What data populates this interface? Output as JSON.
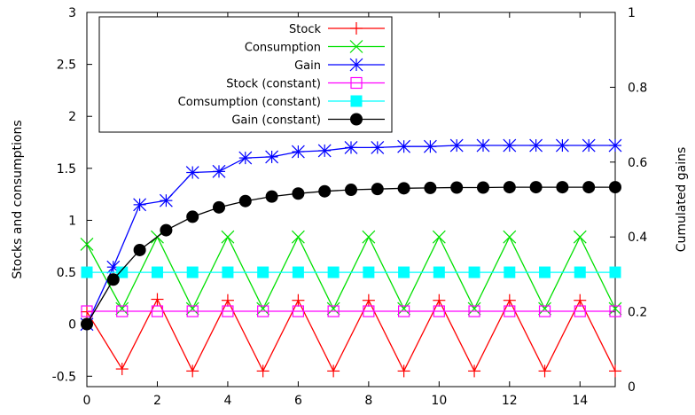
{
  "chart_data": {
    "type": "line",
    "title": "",
    "xlabel": "",
    "ylabel": "Stocks and consumptions",
    "y2label": "Cumulated gains",
    "xlim": [
      0,
      15
    ],
    "ylim": [
      -0.6,
      3
    ],
    "y2lim": [
      0,
      1
    ],
    "x_ticks": [
      0,
      2,
      4,
      6,
      8,
      10,
      12,
      14
    ],
    "y_ticks": [
      -0.5,
      0,
      0.5,
      1,
      1.5,
      2,
      2.5,
      3
    ],
    "y2_ticks": [
      0,
      0.2,
      0.4,
      0.6,
      0.8,
      1
    ],
    "x_tick_labels": [
      "0",
      "2",
      "4",
      "6",
      "8",
      "10",
      "12",
      "14"
    ],
    "y_tick_labels": [
      "-0.5",
      "0",
      "0.5",
      "1",
      "1.5",
      "2",
      "2.5",
      "3"
    ],
    "y2_tick_labels": [
      "0",
      "0.2",
      "0.4",
      "0.6",
      "0.8",
      "1"
    ],
    "grid": false,
    "legend_position": "top-left",
    "series": [
      {
        "name": "Stock",
        "color": "#ff0000",
        "marker": "plus",
        "axis": "y",
        "x": [
          0,
          1,
          2,
          3,
          4,
          5,
          6,
          7,
          8,
          9,
          10,
          11,
          12,
          13,
          14,
          15
        ],
        "y": [
          0.12,
          -0.43,
          0.24,
          -0.45,
          0.23,
          -0.45,
          0.23,
          -0.45,
          0.23,
          -0.45,
          0.23,
          -0.45,
          0.23,
          -0.45,
          0.23,
          -0.45
        ]
      },
      {
        "name": "Consumption",
        "color": "#00e000",
        "marker": "cross",
        "axis": "y",
        "x": [
          0,
          1,
          2,
          3,
          4,
          5,
          6,
          7,
          8,
          9,
          10,
          11,
          12,
          13,
          14,
          15
        ],
        "y": [
          0.77,
          0.15,
          0.84,
          0.15,
          0.84,
          0.15,
          0.84,
          0.15,
          0.84,
          0.15,
          0.84,
          0.15,
          0.84,
          0.15,
          0.84,
          0.15
        ]
      },
      {
        "name": "Gain",
        "color": "#0000ff",
        "marker": "star",
        "axis": "y",
        "x": [
          0,
          0.75,
          1.5,
          2.25,
          3,
          3.75,
          4.5,
          5.25,
          6,
          6.75,
          7.5,
          8.25,
          9,
          9.75,
          10.5,
          11.25,
          12,
          12.75,
          13.5,
          14.25,
          15
        ],
        "y": [
          0,
          0.55,
          1.15,
          1.19,
          1.46,
          1.47,
          1.6,
          1.61,
          1.66,
          1.67,
          1.7,
          1.7,
          1.71,
          1.71,
          1.72,
          1.72,
          1.72,
          1.72,
          1.72,
          1.72,
          1.72
        ]
      },
      {
        "name": "Stock (constant)",
        "color": "#ff00ff",
        "marker": "open-square",
        "axis": "y",
        "x": [
          0,
          1,
          2,
          3,
          4,
          5,
          6,
          7,
          8,
          9,
          10,
          11,
          12,
          13,
          14,
          15
        ],
        "y": [
          0.125,
          0.125,
          0.125,
          0.125,
          0.125,
          0.125,
          0.125,
          0.125,
          0.125,
          0.125,
          0.125,
          0.125,
          0.125,
          0.125,
          0.125,
          0.125
        ]
      },
      {
        "name": "Comsumption (constant)",
        "color": "#00ffff",
        "marker": "filled-square",
        "axis": "y",
        "x": [
          0,
          1,
          2,
          3,
          4,
          5,
          6,
          7,
          8,
          9,
          10,
          11,
          12,
          13,
          14,
          15
        ],
        "y": [
          0.5,
          0.5,
          0.5,
          0.5,
          0.5,
          0.5,
          0.5,
          0.5,
          0.5,
          0.5,
          0.5,
          0.5,
          0.5,
          0.5,
          0.5,
          0.5
        ]
      },
      {
        "name": "Gain (constant)",
        "color": "#000000",
        "marker": "filled-circle",
        "axis": "y2",
        "x": [
          0,
          0.75,
          1.5,
          2.25,
          3,
          3.75,
          4.5,
          5.25,
          6,
          6.75,
          7.5,
          8.25,
          9,
          9.75,
          10.5,
          11.25,
          12,
          12.75,
          13.5,
          14.25,
          15
        ],
        "y": [
          0.167,
          0.286,
          0.365,
          0.418,
          0.454,
          0.479,
          0.496,
          0.508,
          0.516,
          0.522,
          0.526,
          0.528,
          0.53,
          0.531,
          0.532,
          0.532,
          0.533,
          0.533,
          0.533,
          0.533,
          0.533
        ]
      }
    ]
  }
}
